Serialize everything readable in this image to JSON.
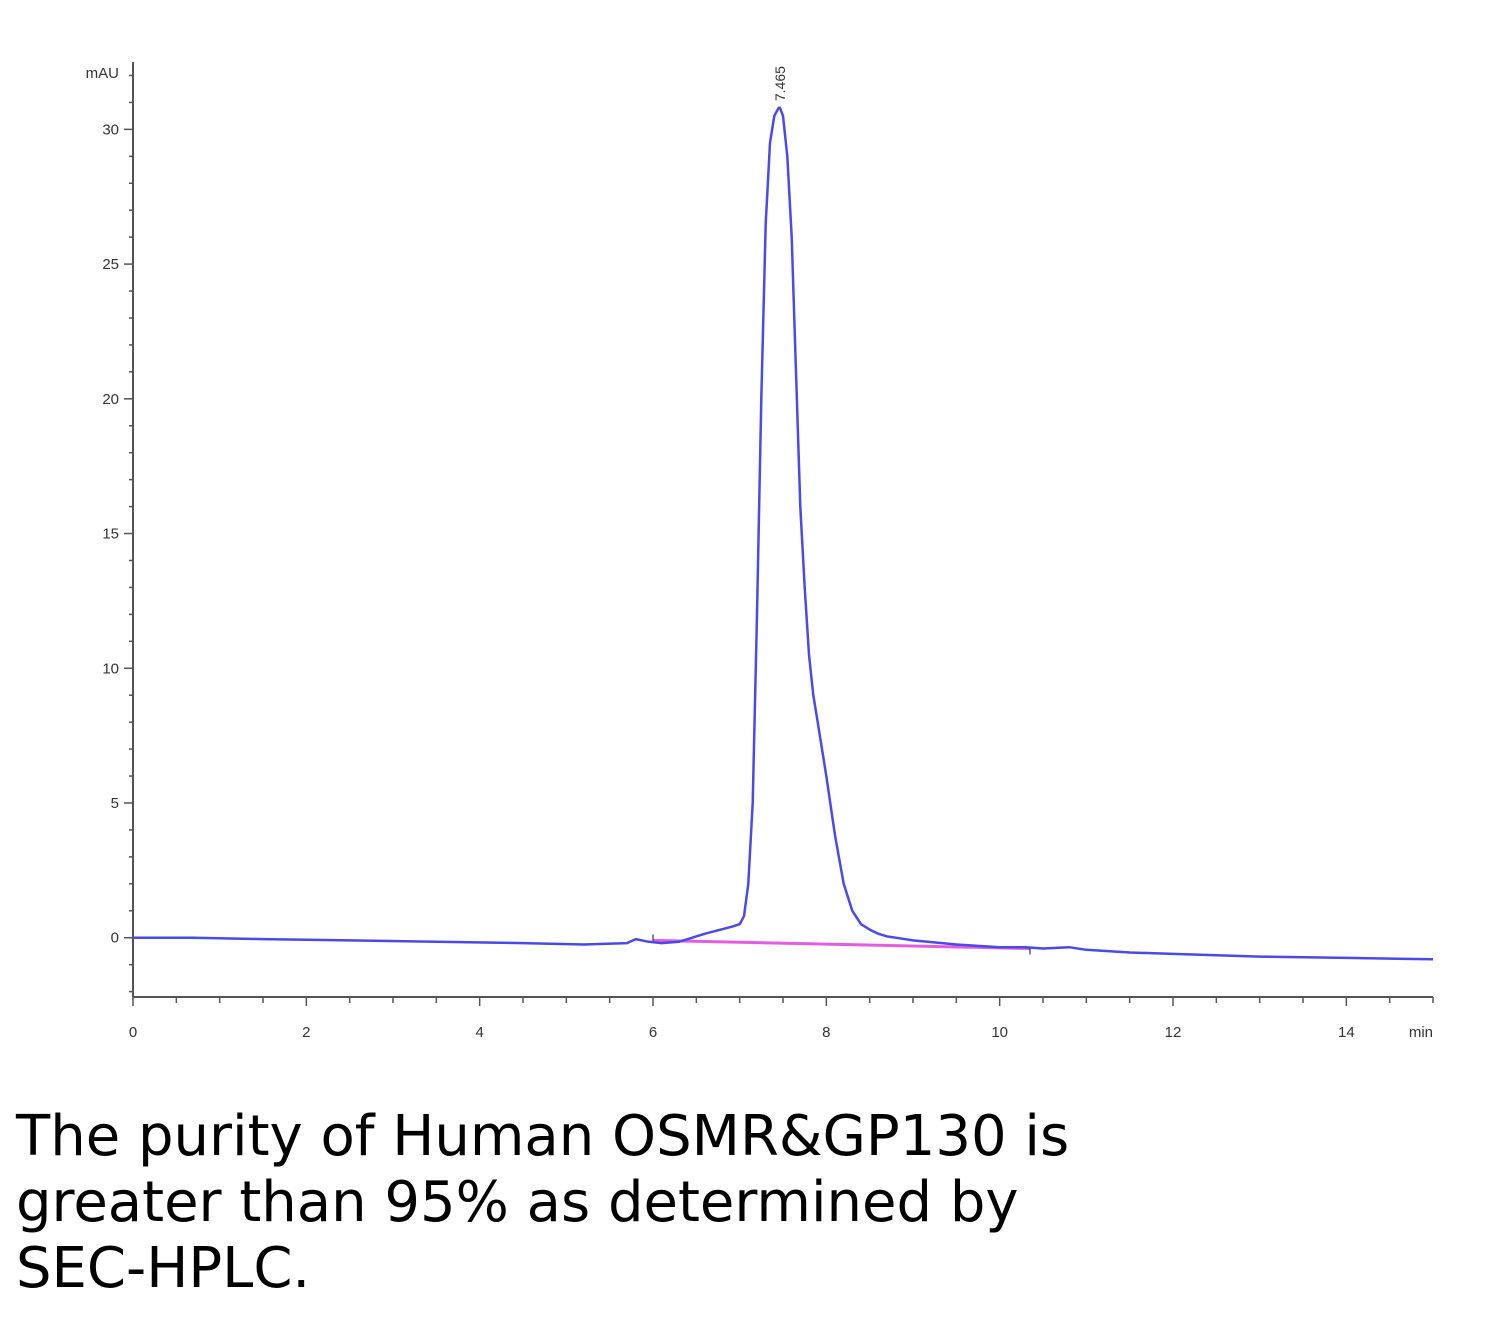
{
  "caption": "The purity of Human OSMR&GP130 is greater than 95% as determined by SEC-HPLC.",
  "chart_data": {
    "type": "line",
    "title": "",
    "xlabel": "min",
    "ylabel": "mAU",
    "xlim": [
      0,
      15
    ],
    "ylim": [
      -2.2,
      32.5
    ],
    "x_ticks": [
      0,
      2,
      4,
      6,
      8,
      10,
      12,
      14
    ],
    "y_ticks": [
      0,
      5,
      10,
      15,
      20,
      25,
      30
    ],
    "grid": false,
    "peak_label": "7.465",
    "peak_label_x": 7.465,
    "colors": {
      "signal": "#4a4ae6",
      "baseline": "#e040e0",
      "axis": "#555555"
    },
    "series": [
      {
        "x": [
          0,
          0.7,
          1.5,
          2.5,
          3.5,
          4.5,
          5.2,
          5.7,
          5.8,
          5.95,
          6.1,
          6.3,
          6.6,
          6.9,
          7.0,
          7.05,
          7.1,
          7.15,
          7.2,
          7.25,
          7.3,
          7.35,
          7.4,
          7.45,
          7.465,
          7.5,
          7.55,
          7.6,
          7.65,
          7.7,
          7.75,
          7.8,
          7.85,
          7.9,
          8.0,
          8.1,
          8.2,
          8.3,
          8.4,
          8.5,
          8.6,
          8.7,
          8.8,
          9.0,
          9.5,
          10.0,
          10.3,
          10.5,
          10.8,
          11.0,
          11.5,
          12.0,
          13.0,
          14.0,
          15.0
        ],
        "y": [
          0.0,
          0.0,
          -0.05,
          -0.1,
          -0.15,
          -0.2,
          -0.25,
          -0.2,
          -0.05,
          -0.15,
          -0.2,
          -0.15,
          0.15,
          0.4,
          0.5,
          0.8,
          2.0,
          5.0,
          12.0,
          20.0,
          26.5,
          29.5,
          30.5,
          30.8,
          30.8,
          30.5,
          29.0,
          26.0,
          21.0,
          16.0,
          13.0,
          10.5,
          9.0,
          8.0,
          6.0,
          3.8,
          2.0,
          1.0,
          0.5,
          0.3,
          0.15,
          0.05,
          0.0,
          -0.1,
          -0.25,
          -0.35,
          -0.35,
          -0.4,
          -0.35,
          -0.45,
          -0.55,
          -0.6,
          -0.7,
          -0.75,
          -0.8
        ]
      }
    ],
    "baseline_segment": {
      "x": [
        6.0,
        10.35
      ],
      "y": [
        -0.1,
        -0.4
      ]
    }
  }
}
